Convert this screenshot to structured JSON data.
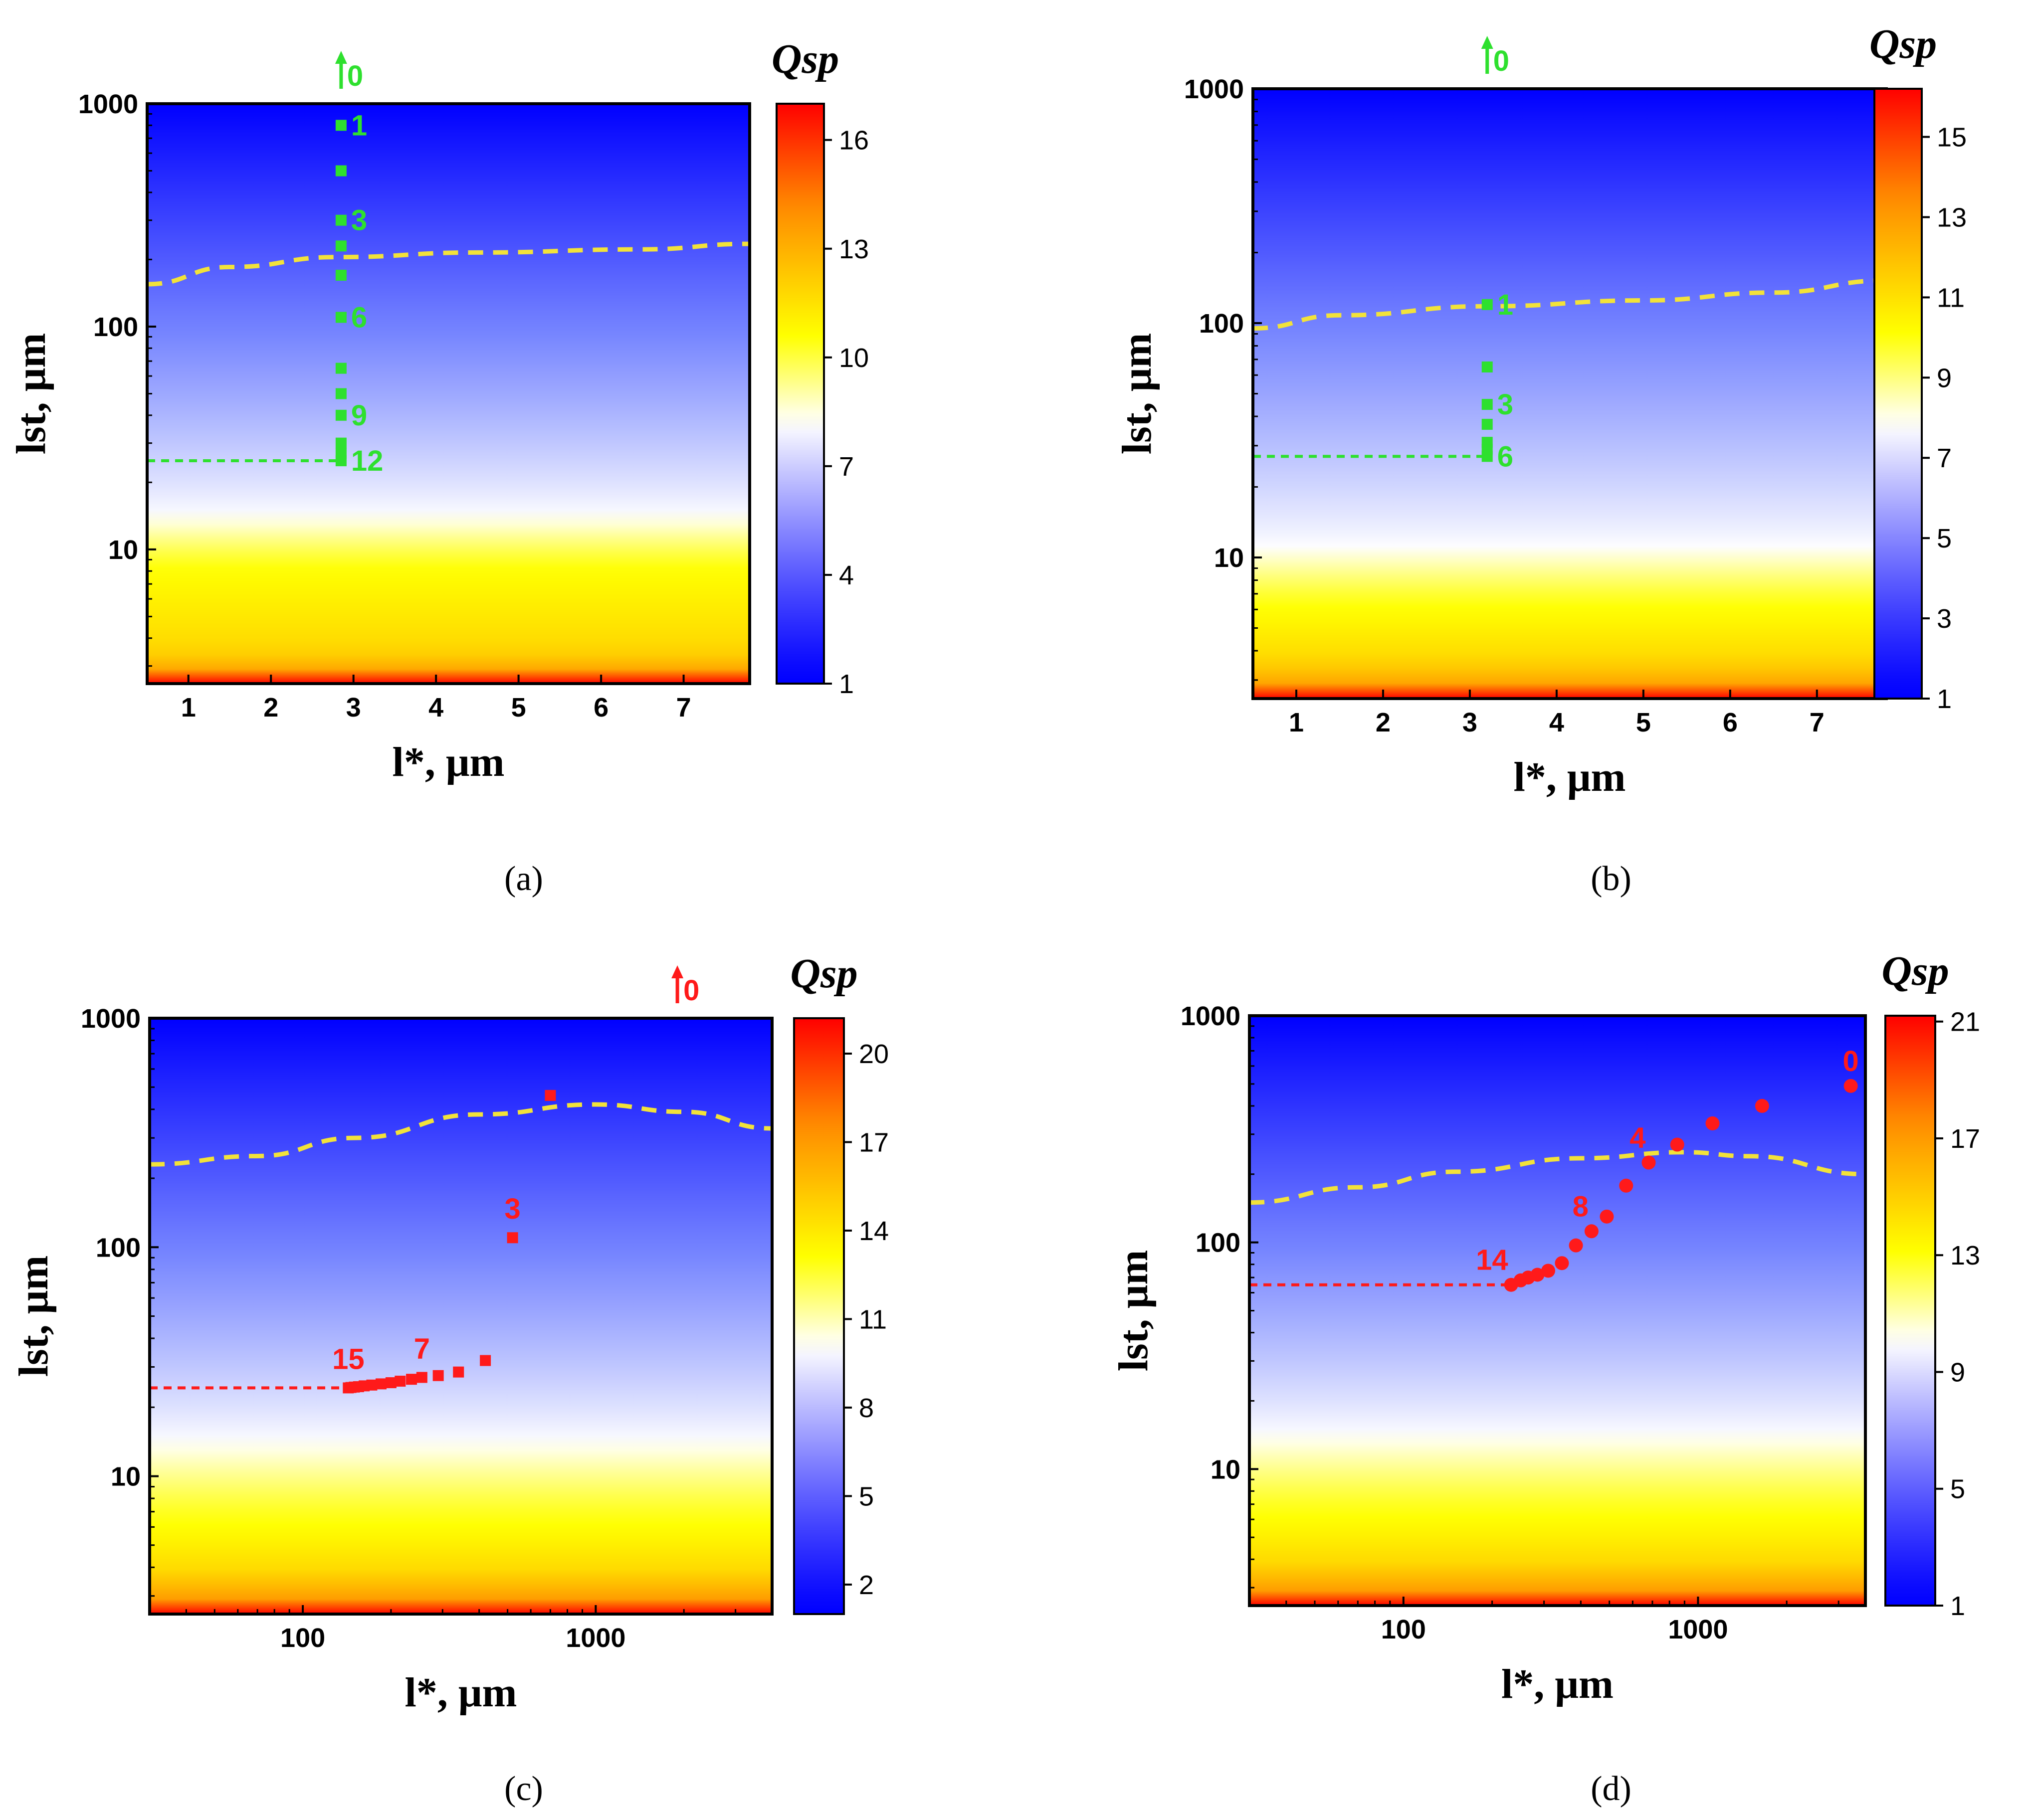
{
  "colors": {
    "map_low": "#0000ff",
    "map_mid": "#ffffff",
    "map_high_yellow": "#ffff00",
    "map_high_orange": "#ff8c00",
    "map_high_red": "#ff0000",
    "boundary_line": "#f2e23a",
    "trajectory_green": "#2ee02e",
    "trajectory_red": "#ff1a1a"
  },
  "chart_data": [
    {
      "panel": "(a)",
      "type": "heatmap",
      "xscale": "linear",
      "xlim": [
        0.5,
        7.8
      ],
      "xticks": [
        1,
        2,
        3,
        4,
        5,
        6,
        7
      ],
      "xtick_labels": [
        "1",
        "2",
        "3",
        "4",
        "5",
        "6",
        "7"
      ],
      "ylim": [
        2.5,
        1000
      ],
      "yticks": [
        10,
        100,
        1000
      ],
      "ytick_labels": [
        "10",
        "100",
        "1000"
      ],
      "xlabel": "l*, μm",
      "ylabel": "lst, μm",
      "colorbar_title": "Qsp",
      "colorbar_range": [
        1,
        17
      ],
      "colorbar_ticks": [
        1,
        4,
        7,
        10,
        13,
        16
      ],
      "colorbar_tick_labels": [
        "1",
        "4",
        "7",
        "10",
        "13",
        "16"
      ],
      "field": {
        "white_level": 14,
        "band_low": 8,
        "orange_level": 3.5,
        "red_level": 2.6
      },
      "boundary": {
        "x": [
          0.5,
          1.5,
          2.8,
          4.5,
          6.5,
          7.8
        ],
        "y": [
          155,
          185,
          205,
          215,
          222,
          235
        ]
      },
      "trajectory": {
        "color": "green",
        "marker": "square",
        "x": [
          2.85,
          2.85,
          2.85,
          2.85,
          2.85,
          2.85,
          2.85,
          2.85,
          2.85,
          2.85,
          2.85,
          2.85
        ],
        "y": [
          800,
          500,
          300,
          230,
          170,
          110,
          65,
          50,
          40,
          30,
          27,
          25
        ],
        "labeled_points": [
          {
            "label": "1",
            "x": 2.85,
            "y": 800
          },
          {
            "label": "3",
            "x": 2.85,
            "y": 300
          },
          {
            "label": "6",
            "x": 2.85,
            "y": 110
          },
          {
            "label": "9",
            "x": 2.85,
            "y": 40
          },
          {
            "label": "12",
            "x": 2.85,
            "y": 25
          }
        ],
        "start_label": "0",
        "final_level_y": 25
      }
    },
    {
      "panel": "(b)",
      "type": "heatmap",
      "xscale": "linear",
      "xlim": [
        0.5,
        7.8
      ],
      "xticks": [
        1,
        2,
        3,
        4,
        5,
        6,
        7
      ],
      "xtick_labels": [
        "1",
        "2",
        "3",
        "4",
        "5",
        "6",
        "7"
      ],
      "ylim": [
        2.5,
        1000
      ],
      "yticks": [
        10,
        100,
        1000
      ],
      "ytick_labels": [
        "10",
        "100",
        "1000"
      ],
      "xlabel": "l*, μm",
      "ylabel": "lst, μm",
      "colorbar_title": "Qsp",
      "colorbar_range": [
        1,
        16.2
      ],
      "colorbar_ticks": [
        1,
        3,
        5,
        7,
        9,
        11,
        13,
        15
      ],
      "colorbar_tick_labels": [
        "1",
        "3",
        "5",
        "7",
        "9",
        "11",
        "13",
        "15"
      ],
      "field": {
        "white_level": 11,
        "band_low": 6,
        "orange_level": 3.6,
        "red_level": 2.6
      },
      "boundary": {
        "x": [
          0.5,
          1.5,
          3.2,
          5.0,
          6.5,
          7.8
        ],
        "y": [
          95,
          108,
          118,
          125,
          135,
          152
        ]
      },
      "trajectory": {
        "color": "green",
        "marker": "square",
        "x": [
          3.2,
          3.2,
          3.2,
          3.2,
          3.2,
          3.2,
          3.2
        ],
        "y": [
          120,
          65,
          45,
          37,
          31,
          29,
          27
        ],
        "labeled_points": [
          {
            "label": "1",
            "x": 3.2,
            "y": 120
          },
          {
            "label": "3",
            "x": 3.2,
            "y": 45
          },
          {
            "label": "6",
            "x": 3.2,
            "y": 27
          }
        ],
        "start_label": "0",
        "final_level_y": 27
      }
    },
    {
      "panel": "(c)",
      "type": "heatmap",
      "xscale": "log",
      "xlim": [
        30,
        4000
      ],
      "xticks": [
        100,
        1000
      ],
      "xtick_labels": [
        "100",
        "1000"
      ],
      "ylim": [
        2.5,
        1000
      ],
      "yticks": [
        10,
        100,
        1000
      ],
      "ytick_labels": [
        "10",
        "100",
        "1000"
      ],
      "xlabel": "l*, μm",
      "ylabel": "lst, μm",
      "colorbar_title": "Qsp",
      "colorbar_range": [
        1,
        21.2
      ],
      "colorbar_ticks": [
        2,
        5,
        8,
        11,
        14,
        17,
        20
      ],
      "colorbar_tick_labels": [
        "2",
        "5",
        "8",
        "11",
        "14",
        "17",
        "20"
      ],
      "field": {
        "white_level": 14,
        "band_low": 6,
        "orange_level": 3.8,
        "red_level": 2.7
      },
      "boundary": {
        "x": [
          30,
          70,
          150,
          400,
          1000,
          2000,
          4000
        ],
        "y": [
          230,
          250,
          300,
          380,
          420,
          390,
          330
        ]
      },
      "trajectory": {
        "color": "red",
        "marker": "square",
        "x": [
          700,
          520,
          420,
          340,
          290,
          255,
          235,
          215,
          200,
          185,
          172,
          162,
          155,
          150,
          146,
          143
        ],
        "y": [
          460,
          110,
          32,
          28.5,
          27.5,
          27,
          26.5,
          26,
          25.6,
          25.3,
          25,
          24.8,
          24.6,
          24.5,
          24.4,
          24.3
        ],
        "labeled_points": [
          {
            "label": "3",
            "x": 520,
            "y": 110
          },
          {
            "label": "7",
            "x": 255,
            "y": 27
          },
          {
            "label": "15",
            "x": 143,
            "y": 24.3
          }
        ],
        "start_label": "0",
        "final_level_y": 24.3
      }
    },
    {
      "panel": "(d)",
      "type": "heatmap",
      "xscale": "log",
      "xlim": [
        30,
        3700
      ],
      "xticks": [
        100,
        1000
      ],
      "xtick_labels": [
        "100",
        "1000"
      ],
      "ylim": [
        2.5,
        1000
      ],
      "yticks": [
        10,
        100,
        1000
      ],
      "ytick_labels": [
        "10",
        "100",
        "1000"
      ],
      "xlabel": "l*, μm",
      "ylabel": "lst, μm",
      "colorbar_title": "Qsp",
      "colorbar_range": [
        1,
        21.2
      ],
      "colorbar_ticks": [
        1,
        5,
        9,
        13,
        17,
        21
      ],
      "colorbar_tick_labels": [
        "1",
        "5",
        "9",
        "13",
        "17",
        "21"
      ],
      "field": {
        "white_level": 14,
        "band_low": 6,
        "orange_level": 3.8,
        "red_level": 2.7
      },
      "boundary": {
        "x": [
          30,
          70,
          150,
          400,
          900,
          1500,
          3700
        ],
        "y": [
          150,
          175,
          205,
          235,
          250,
          240,
          200
        ]
      },
      "trajectory": {
        "color": "red",
        "marker": "circle",
        "x": [
          3300,
          1650,
          1120,
          850,
          680,
          570,
          490,
          435,
          385,
          345,
          310,
          285,
          265,
          250,
          232
        ],
        "y": [
          490,
          400,
          335,
          270,
          225,
          178,
          130,
          112,
          97,
          81,
          75,
          72,
          70,
          68,
          65
        ],
        "labeled_points": [
          {
            "label": "0",
            "x": 3300,
            "y": 490
          },
          {
            "label": "4",
            "x": 680,
            "y": 225
          },
          {
            "label": "8",
            "x": 435,
            "y": 112
          },
          {
            "label": "14",
            "x": 232,
            "y": 65
          }
        ],
        "start_label": "",
        "final_level_y": 65
      }
    }
  ]
}
